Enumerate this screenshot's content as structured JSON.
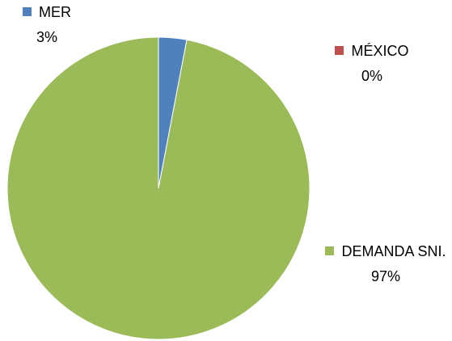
{
  "chart_data": {
    "type": "pie",
    "categories": [
      "MER",
      "MÉXICO",
      "DEMANDA SNI."
    ],
    "values": [
      3,
      0,
      97
    ],
    "value_labels": [
      "3%",
      "0%",
      "97%"
    ],
    "colors": [
      "#4f81bd",
      "#c0504d",
      "#9bbb59"
    ]
  }
}
